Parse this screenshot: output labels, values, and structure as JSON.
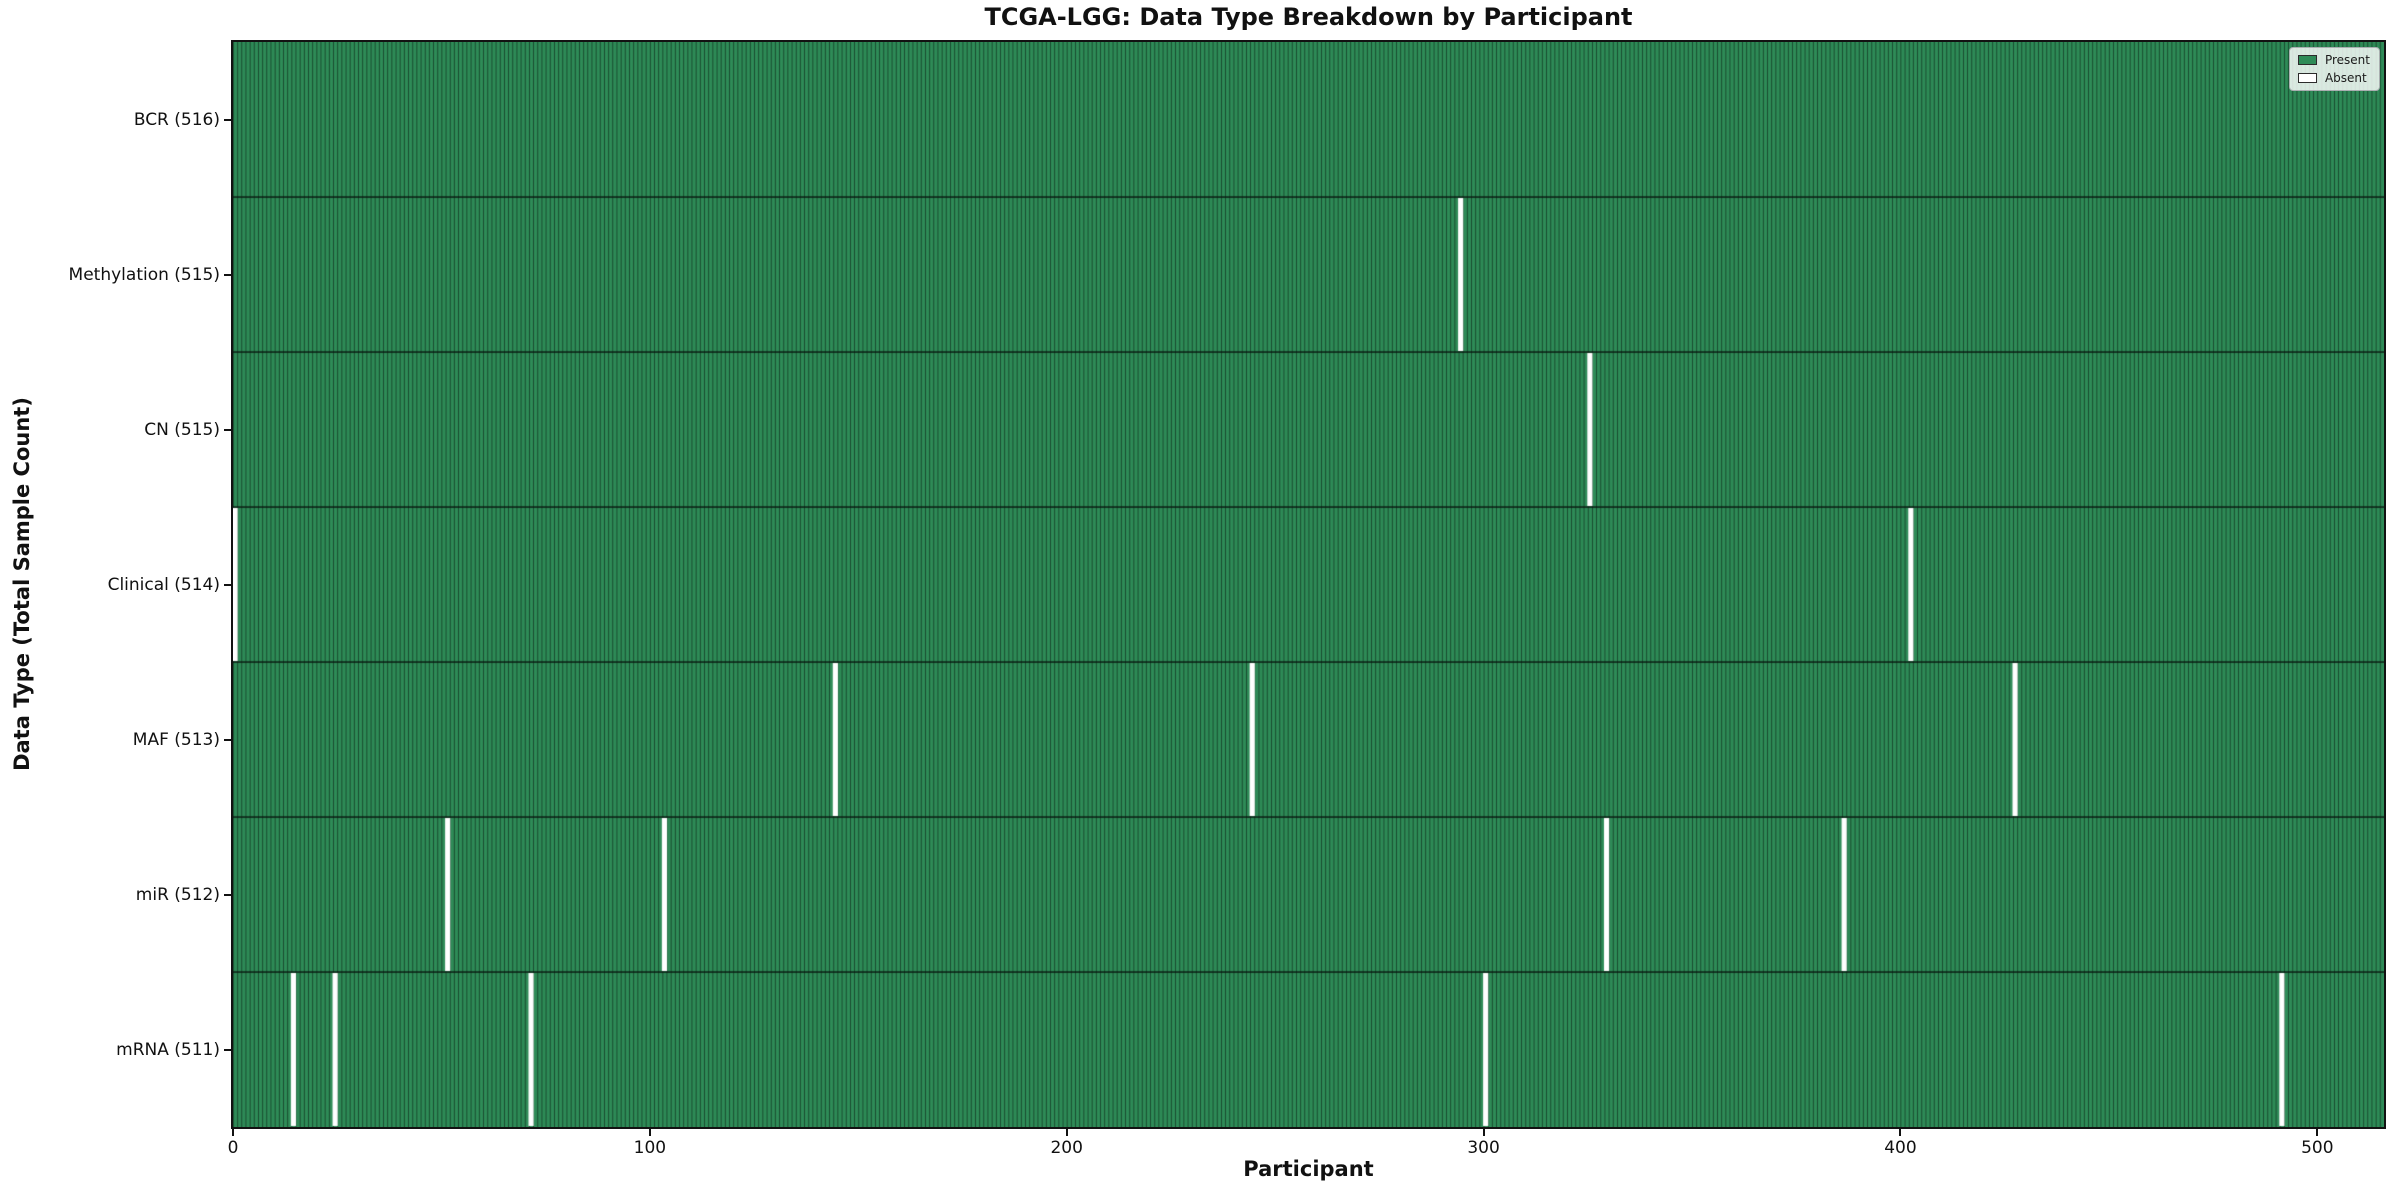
{
  "title": "TCGA-LGG: Data Type Breakdown by Participant",
  "chart_data": {
    "type": "heatmap",
    "title": "TCGA-LGG: Data Type Breakdown by Participant",
    "xlabel": "Participant",
    "ylabel": "Data Type (Total Sample Count)",
    "x_ticks": [
      0,
      100,
      200,
      300,
      400,
      500
    ],
    "x_range": [
      0,
      516
    ],
    "n_participants": 516,
    "grid": false,
    "legend": {
      "position": "upper right",
      "entries": [
        {
          "label": "Present",
          "color": "#2e8b57"
        },
        {
          "label": "Absent",
          "color": "#ffffff"
        }
      ]
    },
    "rows": [
      {
        "label": "BCR (516)",
        "data_type": "BCR",
        "total": 516,
        "absent_participants": []
      },
      {
        "label": "Methylation (515)",
        "data_type": "Methylation",
        "total": 515,
        "absent_participants": [
          294
        ]
      },
      {
        "label": "CN (515)",
        "data_type": "CN",
        "total": 515,
        "absent_participants": [
          325
        ]
      },
      {
        "label": "Clinical (514)",
        "data_type": "Clinical",
        "total": 514,
        "absent_participants": [
          0,
          402
        ]
      },
      {
        "label": "MAF (513)",
        "data_type": "MAF",
        "total": 513,
        "absent_participants": [
          144,
          244,
          427
        ]
      },
      {
        "label": "miR (512)",
        "data_type": "miR",
        "total": 512,
        "absent_participants": [
          51,
          103,
          329,
          386
        ]
      },
      {
        "label": "mRNA (511)",
        "data_type": "mRNA",
        "total": 511,
        "absent_participants": [
          14,
          24,
          71,
          300,
          491
        ]
      }
    ],
    "colors": {
      "present": "#2e8b57",
      "absent": "#ffffff",
      "bar_edge": "#16402a",
      "row_separator": "#0e2418",
      "spine": "#121212"
    }
  }
}
